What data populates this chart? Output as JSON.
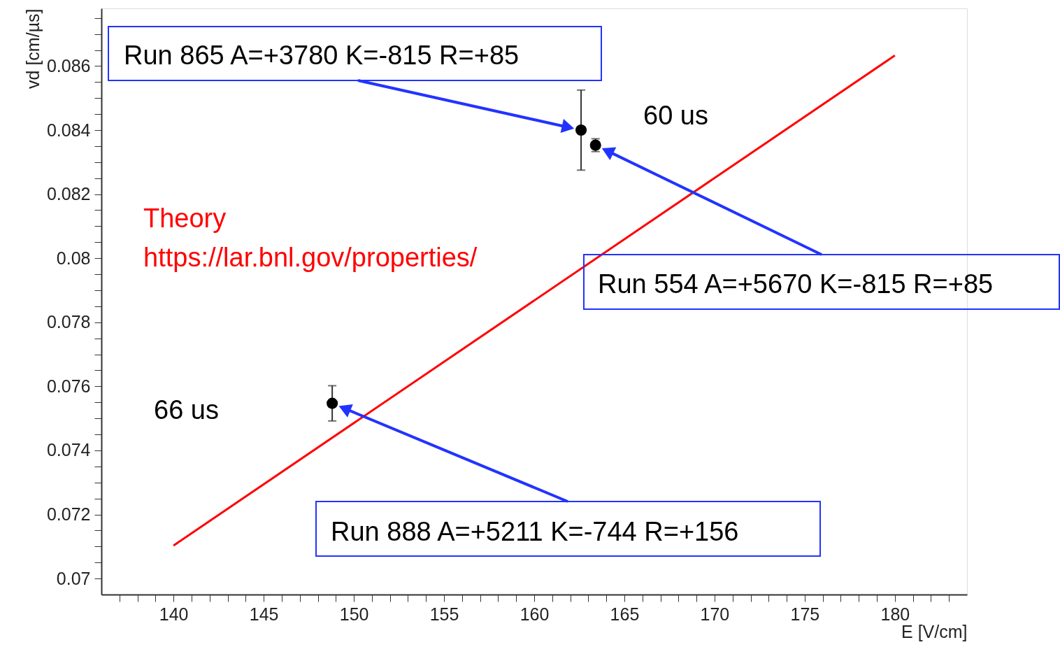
{
  "chart_data": {
    "type": "scatter",
    "xlabel": "E [V/cm]",
    "ylabel": "vd [cm/µs]",
    "xlim": [
      136,
      184
    ],
    "ylim": [
      0.0695,
      0.0878
    ],
    "xticks": [
      {
        "value": 137,
        "label": null
      },
      {
        "value": 138,
        "label": null
      },
      {
        "value": 139,
        "label": null
      },
      140,
      {
        "value": 141,
        "label": null
      },
      {
        "value": 142,
        "label": null
      },
      {
        "value": 143,
        "label": null
      },
      {
        "value": 144,
        "label": null
      },
      145,
      {
        "value": 146,
        "label": null
      },
      {
        "value": 147,
        "label": null
      },
      {
        "value": 148,
        "label": null
      },
      {
        "value": 149,
        "label": null
      },
      150,
      {
        "value": 151,
        "label": null
      },
      {
        "value": 152,
        "label": null
      },
      {
        "value": 153,
        "label": null
      },
      {
        "value": 154,
        "label": null
      },
      155,
      {
        "value": 156,
        "label": null
      },
      {
        "value": 157,
        "label": null
      },
      {
        "value": 158,
        "label": null
      },
      {
        "value": 159,
        "label": null
      },
      160,
      {
        "value": 161,
        "label": null
      },
      {
        "value": 162,
        "label": null
      },
      {
        "value": 163,
        "label": null
      },
      {
        "value": 164,
        "label": null
      },
      165,
      {
        "value": 166,
        "label": null
      },
      {
        "value": 167,
        "label": null
      },
      {
        "value": 168,
        "label": null
      },
      {
        "value": 169,
        "label": null
      },
      170,
      {
        "value": 171,
        "label": null
      },
      {
        "value": 172,
        "label": null
      },
      {
        "value": 173,
        "label": null
      },
      {
        "value": 174,
        "label": null
      },
      175,
      {
        "value": 176,
        "label": null
      },
      {
        "value": 177,
        "label": null
      },
      {
        "value": 178,
        "label": null
      },
      {
        "value": 179,
        "label": null
      },
      180,
      {
        "value": 181,
        "label": null
      },
      {
        "value": 182,
        "label": null
      },
      {
        "value": 183,
        "label": null
      }
    ],
    "yticks": [
      0.07,
      {
        "value": 0.0705,
        "label": null
      },
      {
        "value": 0.071,
        "label": null
      },
      {
        "value": 0.0715,
        "label": null
      },
      0.072,
      {
        "value": 0.0725,
        "label": null
      },
      {
        "value": 0.073,
        "label": null
      },
      {
        "value": 0.0735,
        "label": null
      },
      0.074,
      {
        "value": 0.0745,
        "label": null
      },
      {
        "value": 0.075,
        "label": null
      },
      {
        "value": 0.0755,
        "label": null
      },
      0.076,
      {
        "value": 0.0765,
        "label": null
      },
      {
        "value": 0.077,
        "label": null
      },
      {
        "value": 0.0775,
        "label": null
      },
      0.078,
      {
        "value": 0.0785,
        "label": null
      },
      {
        "value": 0.079,
        "label": null
      },
      {
        "value": 0.0795,
        "label": null
      },
      0.08,
      {
        "value": 0.0805,
        "label": null
      },
      {
        "value": 0.081,
        "label": null
      },
      {
        "value": 0.0815,
        "label": null
      },
      0.082,
      {
        "value": 0.0825,
        "label": null
      },
      {
        "value": 0.083,
        "label": null
      },
      {
        "value": 0.0835,
        "label": null
      },
      0.084,
      {
        "value": 0.0845,
        "label": null
      },
      {
        "value": 0.085,
        "label": null
      },
      {
        "value": 0.0855,
        "label": null
      },
      0.086,
      {
        "value": 0.0865,
        "label": null
      },
      {
        "value": 0.087,
        "label": null
      },
      {
        "value": 0.0875,
        "label": null
      }
    ],
    "grid": false,
    "marker": "circle",
    "series": [
      {
        "color": "#000000",
        "x": [
          162.6,
          163.4,
          148.8
        ],
        "values": [
          0.084,
          0.08353,
          0.07547
        ],
        "errors": [
          0.00125,
          0.0002,
          0.00055
        ]
      },
      {
        "type": "line",
        "name": "Theory",
        "marker": "none",
        "color": "#ff0000",
        "x": [
          140,
          180
        ],
        "values": [
          0.07103,
          0.08633
        ]
      }
    ],
    "annotations": [
      "https://lar.bnl.gov/properties/",
      "60 us",
      "66 us",
      "Run 865 A=+3780 K=-815 R=+85",
      "Run 554 A=+5670 K=-815 R=+85",
      "Run 888 A=+5211 K=-744 R=+156"
    ]
  }
}
